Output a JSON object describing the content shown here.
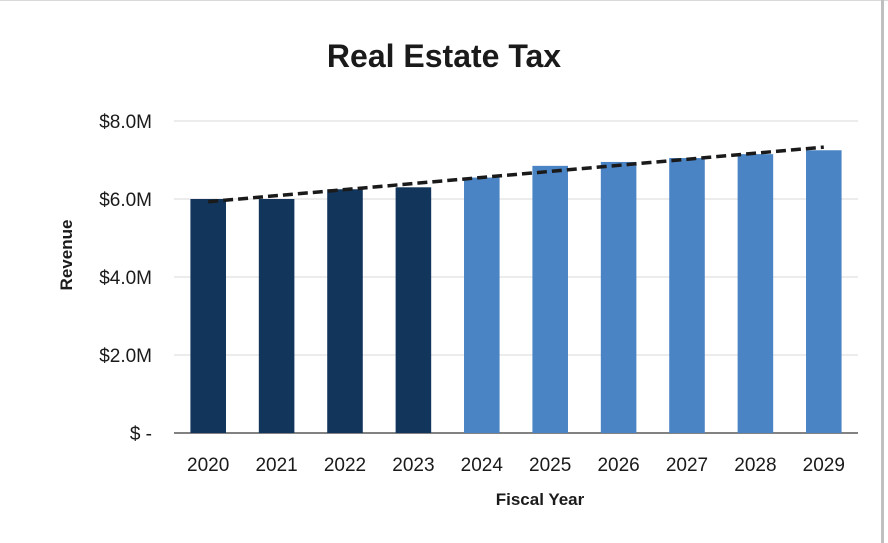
{
  "chart_data": {
    "type": "bar",
    "title": "Real Estate Tax",
    "xlabel": "Fiscal Year",
    "ylabel": "Revenue",
    "categories": [
      "2020",
      "2021",
      "2022",
      "2023",
      "2024",
      "2025",
      "2026",
      "2027",
      "2028",
      "2029"
    ],
    "values": [
      6.0,
      6.0,
      6.25,
      6.3,
      6.55,
      6.85,
      6.95,
      7.05,
      7.15,
      7.25
    ],
    "value_unit": "$M",
    "bar_colors": [
      "#12355b",
      "#12355b",
      "#12355b",
      "#12355b",
      "#4a84c4",
      "#4a84c4",
      "#4a84c4",
      "#4a84c4",
      "#4a84c4",
      "#4a84c4"
    ],
    "actual_color": "#12355b",
    "forecast_color": "#4a84c4",
    "trendline": {
      "style": "dashed",
      "color": "#1a1a1a",
      "start": 5.93,
      "end": 7.33
    },
    "ylim": [
      0,
      8
    ],
    "yticks": [
      0,
      2,
      4,
      6,
      8
    ],
    "ytick_labels": [
      "$ -",
      "$2.0M",
      "$4.0M",
      "$6.0M",
      "$8.0M"
    ],
    "grid": true,
    "legend": "none"
  }
}
